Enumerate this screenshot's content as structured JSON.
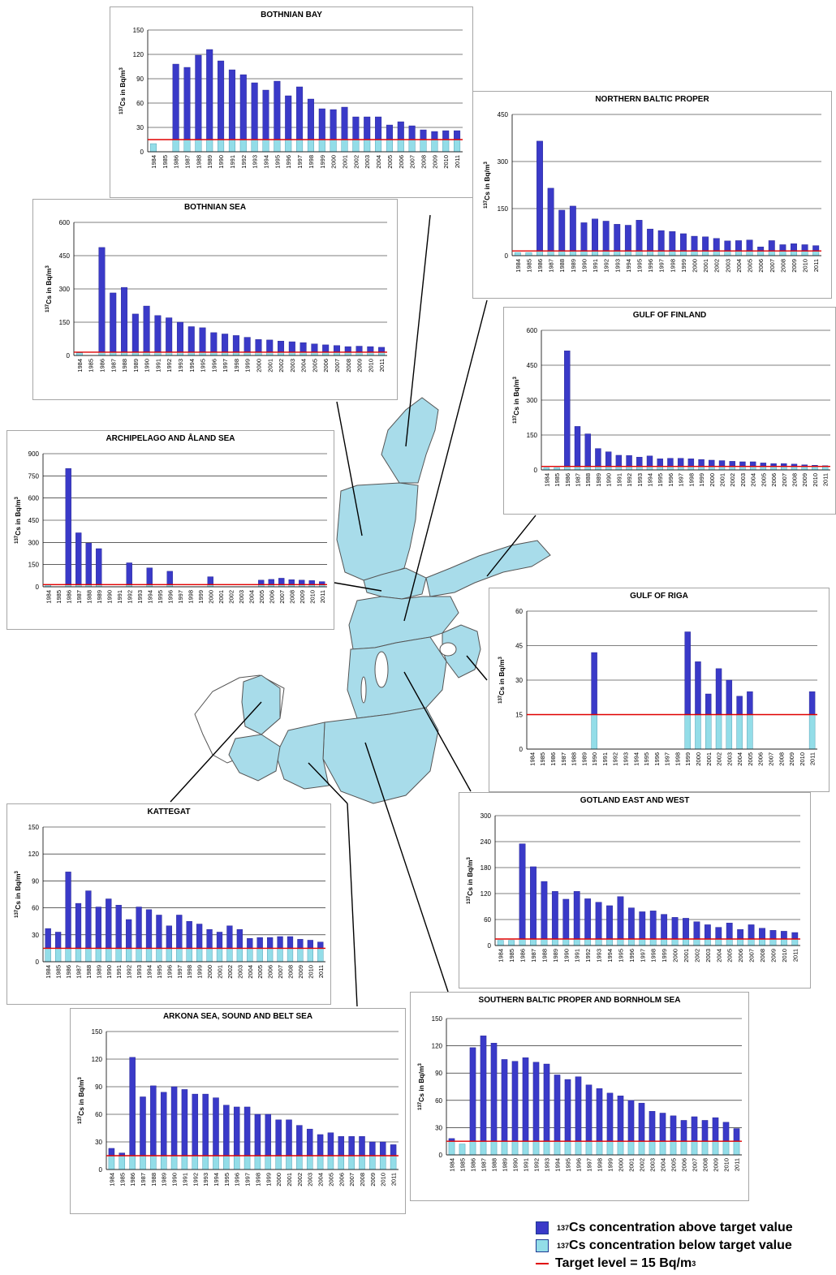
{
  "colors": {
    "above": "#3a3ac8",
    "below": "#93dde8",
    "target": "#e00000",
    "sea": "#a8dcea",
    "coast": "#555555"
  },
  "years": [
    "1984",
    "1985",
    "1986",
    "1987",
    "1988",
    "1989",
    "1990",
    "1991",
    "1992",
    "1993",
    "1994",
    "1995",
    "1996",
    "1997",
    "1998",
    "1999",
    "2000",
    "2001",
    "2002",
    "2003",
    "2004",
    "2005",
    "2006",
    "2007",
    "2008",
    "2009",
    "2010",
    "2011"
  ],
  "ylabel_parts": {
    "pre": "137",
    "post": "Cs in Bq/m",
    "sup": "3"
  },
  "legend": {
    "above": {
      "sup": "137",
      "text": "Cs concentration above target value"
    },
    "below": {
      "sup": "137",
      "text": "Cs concentration below target value"
    },
    "target": {
      "text": "Target level = 15 Bq/m",
      "sup": "3"
    }
  },
  "chart_data": [
    {
      "type": "bar",
      "title": "BOTHNIAN BAY",
      "target": 15,
      "ylim": [
        0,
        150
      ],
      "yticks": [
        0,
        30,
        60,
        90,
        120,
        150
      ],
      "values": [
        10,
        null,
        108,
        104,
        119,
        126,
        112,
        101,
        95,
        85,
        76,
        87,
        69,
        80,
        65,
        53,
        52,
        55,
        43,
        43,
        43,
        33,
        37,
        32,
        27,
        25,
        26,
        26
      ]
    },
    {
      "type": "bar",
      "title": "NORTHERN BALTIC PROPER",
      "target": 15,
      "ylim": [
        0,
        450
      ],
      "yticks": [
        0,
        150,
        300,
        450
      ],
      "values": [
        10,
        10,
        365,
        215,
        145,
        158,
        105,
        117,
        110,
        100,
        97,
        113,
        85,
        80,
        77,
        70,
        62,
        60,
        55,
        47,
        48,
        50,
        28,
        48,
        35,
        38,
        35,
        32
      ]
    },
    {
      "type": "bar",
      "title": "BOTHNIAN SEA",
      "target": 15,
      "ylim": [
        0,
        600
      ],
      "yticks": [
        0,
        150,
        300,
        450,
        600
      ],
      "values": [
        12,
        null,
        487,
        282,
        307,
        187,
        223,
        180,
        170,
        150,
        130,
        125,
        103,
        97,
        90,
        82,
        72,
        70,
        65,
        62,
        58,
        52,
        48,
        45,
        40,
        42,
        40,
        37
      ]
    },
    {
      "type": "bar",
      "title": "GULF OF FINLAND",
      "target": 15,
      "ylim": [
        0,
        600
      ],
      "yticks": [
        0,
        150,
        300,
        450,
        600
      ],
      "values": [
        10,
        10,
        512,
        187,
        155,
        92,
        78,
        63,
        62,
        55,
        60,
        48,
        50,
        50,
        48,
        45,
        42,
        40,
        37,
        35,
        35,
        30,
        27,
        27,
        25,
        22,
        20,
        18
      ]
    },
    {
      "type": "bar",
      "title": "ARCHIPELAGO AND ÅLAND SEA",
      "target": 15,
      "ylim": [
        0,
        900
      ],
      "yticks": [
        0,
        150,
        300,
        450,
        600,
        750,
        900
      ],
      "values": [
        12,
        null,
        800,
        365,
        295,
        258,
        null,
        null,
        162,
        null,
        128,
        null,
        105,
        null,
        null,
        null,
        68,
        null,
        null,
        null,
        null,
        45,
        50,
        58,
        48,
        45,
        42,
        35
      ]
    },
    {
      "type": "bar",
      "title": "GULF OF RIGA",
      "target": 15,
      "ylim": [
        0,
        60
      ],
      "yticks": [
        0,
        15,
        30,
        45,
        60
      ],
      "values": [
        null,
        null,
        null,
        null,
        null,
        null,
        42,
        null,
        null,
        null,
        null,
        null,
        null,
        null,
        null,
        51,
        38,
        24,
        35,
        30,
        23,
        25,
        null,
        null,
        null,
        null,
        null,
        25
      ]
    },
    {
      "type": "bar",
      "title": "KATTEGAT",
      "target": 15,
      "ylim": [
        0,
        150
      ],
      "yticks": [
        0,
        30,
        60,
        90,
        120,
        150
      ],
      "values": [
        37,
        33,
        100,
        65,
        79,
        61,
        70,
        63,
        47,
        61,
        58,
        52,
        40,
        52,
        45,
        42,
        36,
        33,
        40,
        36,
        26,
        27,
        27,
        28,
        28,
        25,
        24,
        22
      ]
    },
    {
      "type": "bar",
      "title": "GOTLAND EAST AND WEST",
      "target": 15,
      "ylim": [
        0,
        300
      ],
      "yticks": [
        0,
        60,
        120,
        180,
        240,
        300
      ],
      "values": [
        12,
        12,
        235,
        182,
        148,
        125,
        107,
        125,
        108,
        100,
        92,
        113,
        87,
        78,
        80,
        72,
        65,
        63,
        55,
        48,
        42,
        52,
        37,
        48,
        40,
        35,
        33,
        30
      ]
    },
    {
      "type": "bar",
      "title": "ARKONA SEA, SOUND AND BELT SEA",
      "target": 15,
      "ylim": [
        0,
        150
      ],
      "yticks": [
        0,
        30,
        60,
        90,
        120,
        150
      ],
      "values": [
        23,
        18,
        122,
        79,
        91,
        84,
        90,
        87,
        82,
        82,
        78,
        70,
        68,
        68,
        60,
        60,
        54,
        54,
        48,
        44,
        38,
        40,
        36,
        36,
        36,
        30,
        30,
        27
      ]
    },
    {
      "type": "bar",
      "title": "SOUTHERN BALTIC PROPER AND BORNHOLM SEA",
      "target": 15,
      "ylim": [
        0,
        150
      ],
      "yticks": [
        0,
        30,
        60,
        90,
        120,
        150
      ],
      "values": [
        18,
        12,
        118,
        131,
        123,
        105,
        103,
        107,
        102,
        100,
        88,
        83,
        86,
        77,
        73,
        68,
        65,
        60,
        57,
        48,
        46,
        43,
        38,
        42,
        38,
        41,
        36,
        29
      ]
    }
  ]
}
